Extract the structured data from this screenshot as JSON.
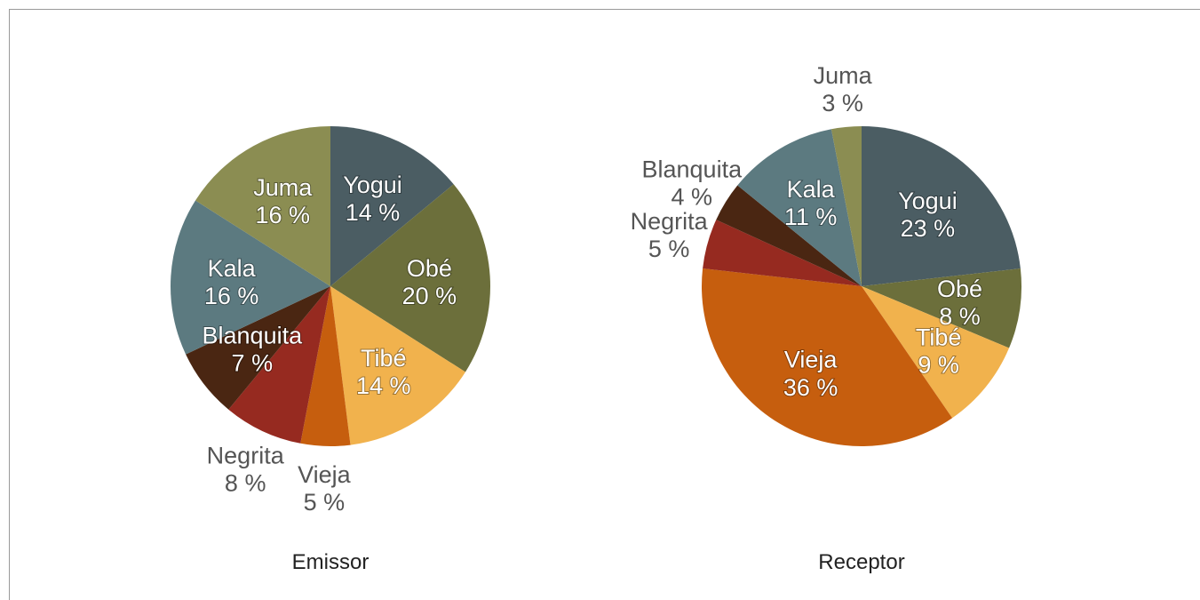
{
  "chart_data": [
    {
      "type": "pie",
      "title": "Emissor",
      "categories": [
        "Yogui",
        "Obé",
        "Tibé",
        "Vieja",
        "Negrita",
        "Blanquita",
        "Kala",
        "Juma"
      ],
      "values": [
        14,
        20,
        14,
        5,
        8,
        7,
        16,
        16
      ],
      "value_labels": [
        "14 %",
        "20 %",
        "14 %",
        "5 %",
        "8 %",
        "7 %",
        "16 %",
        "16 %"
      ],
      "colors": [
        "#4b5d63",
        "#6c6f3b",
        "#f1b24d",
        "#c65e0e",
        "#962a20",
        "#4a2612",
        "#5c7a80",
        "#8b8d52"
      ]
    },
    {
      "type": "pie",
      "title": "Receptor",
      "categories": [
        "Yogui",
        "Obé",
        "Tibé",
        "Vieja",
        "Negrita",
        "Blanquita",
        "Kala",
        "Juma"
      ],
      "values": [
        23,
        8,
        9,
        36,
        5,
        4,
        11,
        3
      ],
      "value_labels": [
        "23 %",
        "8 %",
        "9 %",
        "36 %",
        "5 %",
        "4 %",
        "11 %",
        "3 %"
      ],
      "colors": [
        "#4b5d63",
        "#6c6f3b",
        "#f1b24d",
        "#c65e0e",
        "#962a20",
        "#4a2612",
        "#5c7a80",
        "#8b8d52"
      ]
    }
  ]
}
